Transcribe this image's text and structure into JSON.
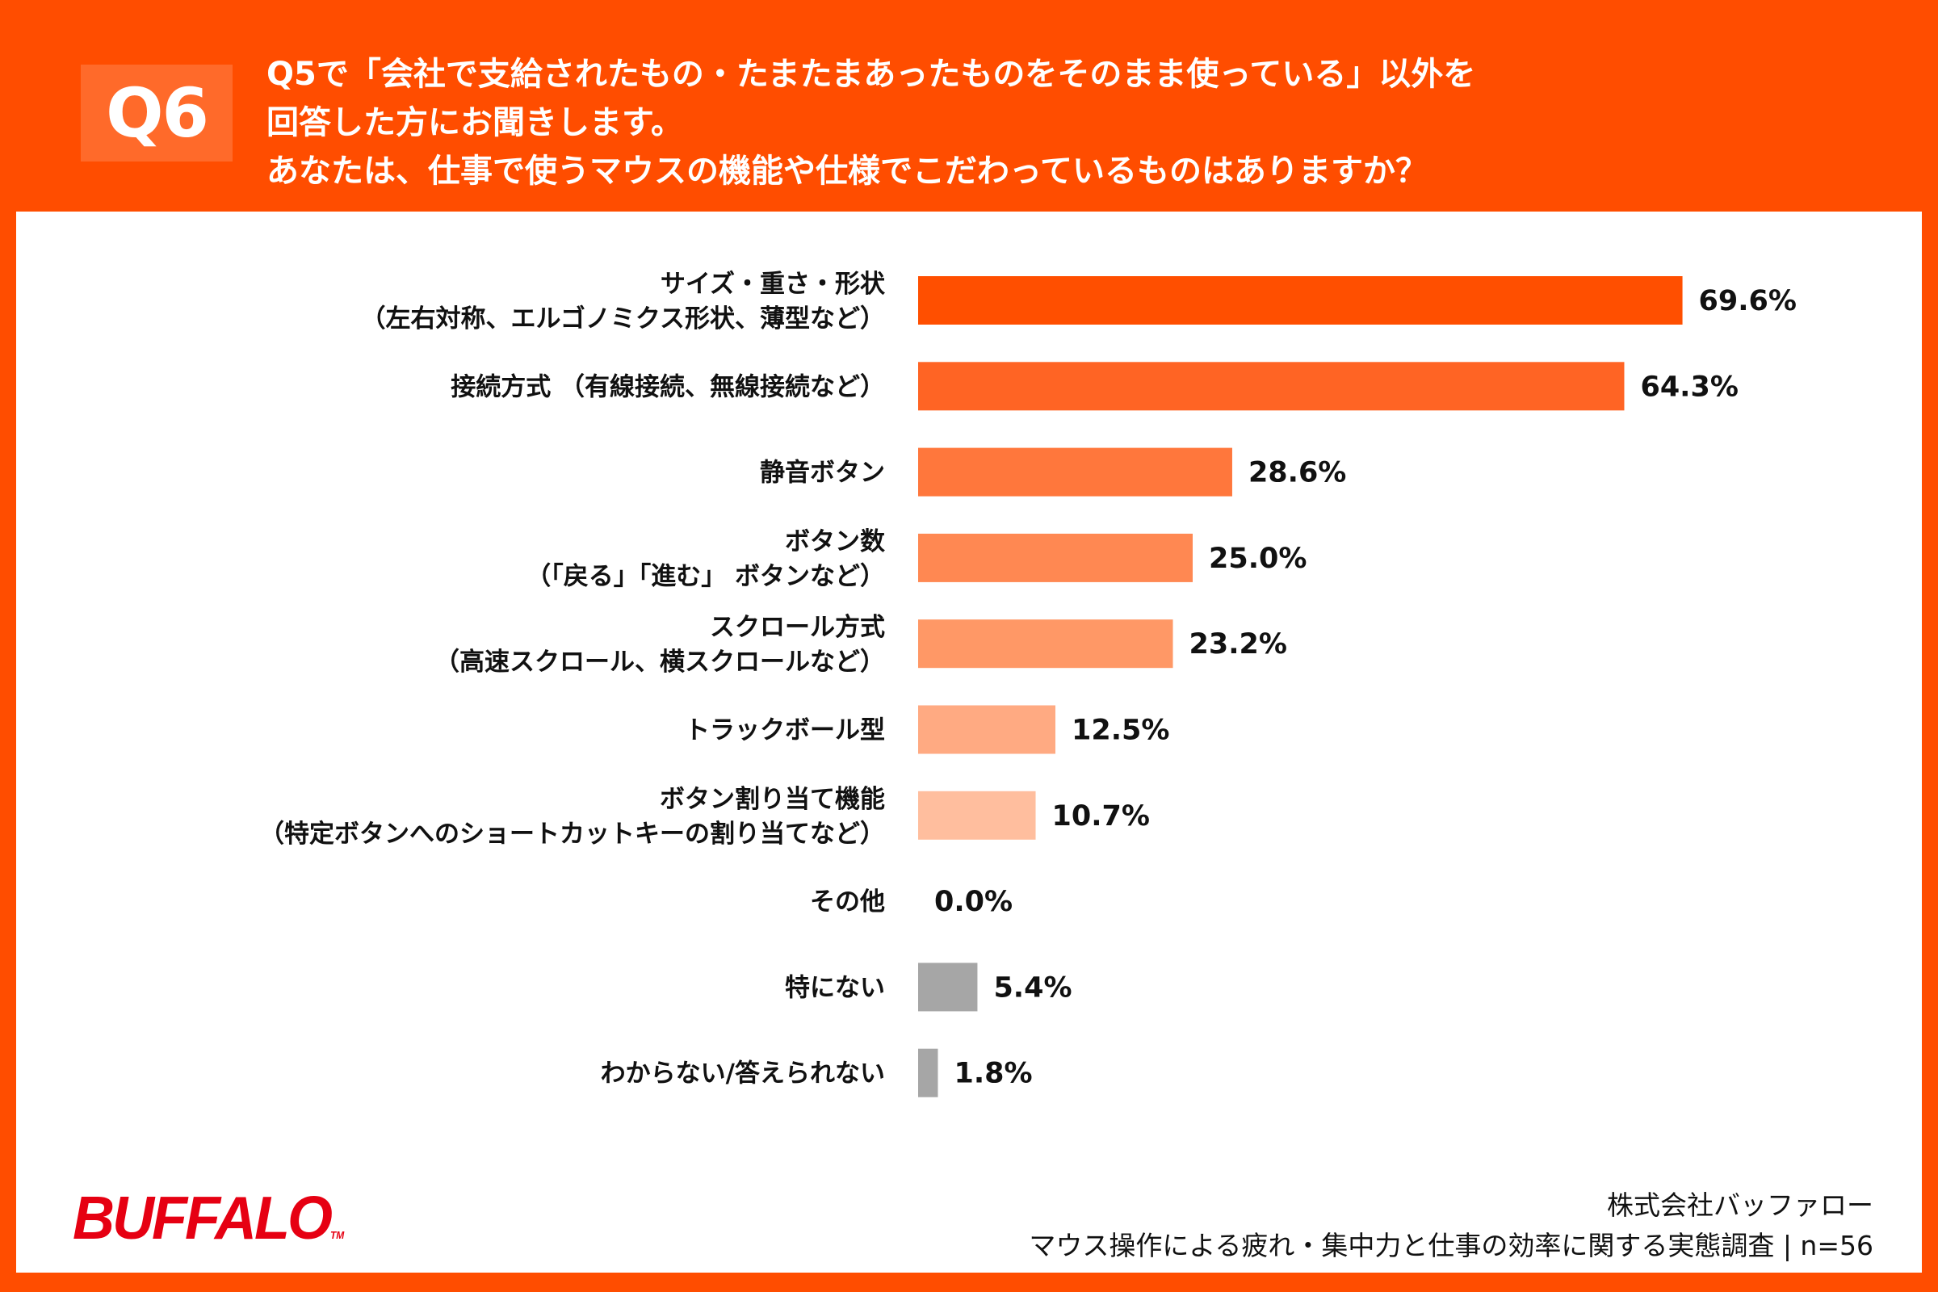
{
  "header": {
    "question_no": "Q6",
    "lines": [
      "Q5で「会社で支給されたもの・たまたまあったものをそのまま使っている」以外を",
      "回答した方にお聞きします。",
      "あなたは、仕事で使うマウスの機能や仕様でこだわっているものはありますか？"
    ]
  },
  "chart_data": {
    "type": "bar",
    "orientation": "horizontal",
    "unit": "%",
    "categories": [
      [
        "サイズ・重さ・形状",
        "（左右対称、エルゴノミクス形状、薄型など）"
      ],
      [
        "接続方式 （有線接続、無線接続など）"
      ],
      [
        "静音ボタン"
      ],
      [
        "ボタン数",
        "（「戻る」「進む」 ボタンなど）"
      ],
      [
        "スクロール方式",
        "（高速スクロール、横スクロールなど）"
      ],
      [
        "トラックボール型"
      ],
      [
        "ボタン割り当て機能",
        "（特定ボタンへのショートカットキーの割り当てなど）"
      ],
      [
        "その他"
      ],
      [
        "特にない"
      ],
      [
        "わからない/答えられない"
      ]
    ],
    "values": [
      69.6,
      64.3,
      28.6,
      25.0,
      23.2,
      12.5,
      10.7,
      0.0,
      5.4,
      1.8
    ],
    "value_labels": [
      "69.6%",
      "64.3%",
      "28.6%",
      "25.0%",
      "23.2%",
      "12.5%",
      "10.7%",
      "0.0%",
      "5.4%",
      "1.8%"
    ],
    "colors": [
      "#FF4F00",
      "#FF6424",
      "#FF773C",
      "#FF8852",
      "#FF9866",
      "#FFAA82",
      "#FFBE9E",
      "#FFBE9E",
      "#A6A6A6",
      "#A6A6A6"
    ],
    "xlim": [
      0,
      100
    ],
    "grid": false,
    "legend": "none"
  },
  "footer": {
    "logo": "BUFFALO",
    "logo_tm": "TM",
    "company": "株式会社バッファロー",
    "survey": "マウス操作による疲れ・集中力と仕事の効率に関する実態調査 | n=56"
  }
}
